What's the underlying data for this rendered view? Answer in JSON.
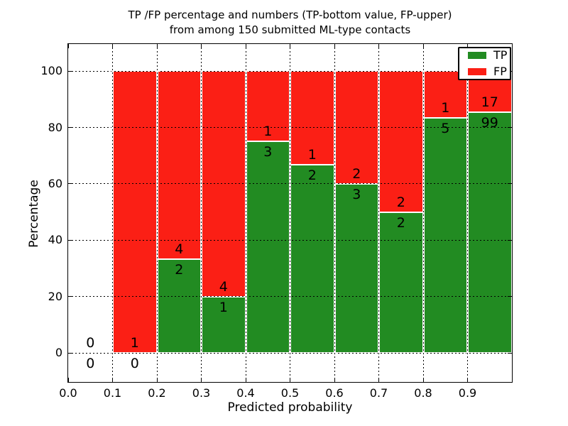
{
  "title": {
    "line1": "TP /FP percentage and numbers (TP-bottom value, FP-upper)",
    "line2": "from among 150 submitted ML-type contacts"
  },
  "axes": {
    "xlabel": "Predicted probability",
    "ylabel": "Percentage",
    "xtick_labels": [
      "0.0",
      "0.1",
      "0.2",
      "0.3",
      "0.4",
      "0.5",
      "0.6",
      "0.7",
      "0.8",
      "0.9"
    ],
    "ytick_labels": [
      "0",
      "20",
      "40",
      "60",
      "80",
      "100"
    ]
  },
  "legend": {
    "entries": [
      {
        "label": "TP",
        "color": "#228b22"
      },
      {
        "label": "FP",
        "color": "#fb1f15"
      }
    ],
    "position": "upper right"
  },
  "colors": {
    "tp": "#228b22",
    "fp": "#fb1f15",
    "grid": "#000000",
    "frame": "#000000",
    "background": "#ffffff"
  },
  "chart_data": {
    "type": "bar",
    "stacked": true,
    "title": "TP /FP percentage and numbers (TP-bottom value, FP-upper) from among 150 submitted ML-type contacts",
    "xlabel": "Predicted probability",
    "ylabel": "Percentage",
    "xlim": [
      0.0,
      1.0
    ],
    "ylim": [
      -10.3,
      109.6
    ],
    "grid": true,
    "legend_position": "upper right",
    "total_contacts": 150,
    "bin_width": 0.1,
    "series_names": [
      "TP",
      "FP"
    ],
    "bins": [
      {
        "range": [
          0.0,
          0.1
        ],
        "tp_count": 0,
        "fp_count": 0,
        "tp_pct": 0.0,
        "fp_pct": 0.0
      },
      {
        "range": [
          0.1,
          0.2
        ],
        "tp_count": 0,
        "fp_count": 1,
        "tp_pct": 0.0,
        "fp_pct": 100.0
      },
      {
        "range": [
          0.2,
          0.3
        ],
        "tp_count": 2,
        "fp_count": 4,
        "tp_pct": 33.33,
        "fp_pct": 66.67
      },
      {
        "range": [
          0.3,
          0.4
        ],
        "tp_count": 1,
        "fp_count": 4,
        "tp_pct": 20.0,
        "fp_pct": 80.0
      },
      {
        "range": [
          0.4,
          0.5
        ],
        "tp_count": 3,
        "fp_count": 1,
        "tp_pct": 75.0,
        "fp_pct": 25.0
      },
      {
        "range": [
          0.5,
          0.6
        ],
        "tp_count": 2,
        "fp_count": 1,
        "tp_pct": 66.67,
        "fp_pct": 33.33
      },
      {
        "range": [
          0.6,
          0.7
        ],
        "tp_count": 3,
        "fp_count": 2,
        "tp_pct": 60.0,
        "fp_pct": 40.0
      },
      {
        "range": [
          0.7,
          0.8
        ],
        "tp_count": 2,
        "fp_count": 2,
        "tp_pct": 50.0,
        "fp_pct": 50.0
      },
      {
        "range": [
          0.8,
          0.9
        ],
        "tp_count": 5,
        "fp_count": 1,
        "tp_pct": 83.33,
        "fp_pct": 16.67
      },
      {
        "range": [
          0.9,
          1.0
        ],
        "tp_count": 99,
        "fp_count": 17,
        "tp_pct": 85.34,
        "fp_pct": 14.66
      }
    ]
  }
}
